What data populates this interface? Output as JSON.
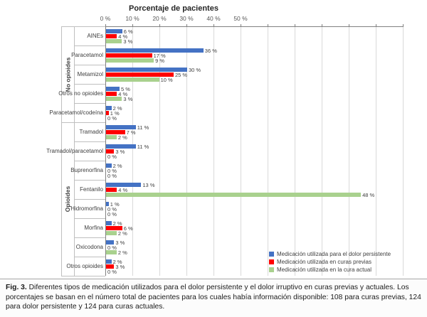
{
  "chart_data": {
    "type": "bar",
    "orientation": "horizontal",
    "title": "Porcentaje de pacientes",
    "x_ticks": [
      "0 %",
      "10 %",
      "20 %",
      "30 %",
      "40 %",
      "50 %"
    ],
    "x_axis_range": [
      0,
      50
    ],
    "unit": "%",
    "grid": true,
    "legend_position": "bottom-right",
    "categories": [
      "AINEs",
      "Paracetamol",
      "Metamizol",
      "Otros no opioides",
      "Paracetamol/codeína",
      "Tramadol",
      "Tramadol/paracetamol",
      "Buprenorfina",
      "Fentanilo",
      "Hidromorfina",
      "Morfina",
      "Oxicodona",
      "Otros opioides"
    ],
    "groups": [
      {
        "label": "No opioides",
        "start": 0,
        "count": 5
      },
      {
        "label": "Opioides",
        "start": 5,
        "count": 8
      }
    ],
    "series": [
      {
        "name": "Medicación utilizada para el dolor persistente",
        "color": "#4472C4",
        "values": [
          6,
          36,
          30,
          5,
          2,
          11,
          11,
          2,
          13,
          1,
          2,
          3,
          2
        ]
      },
      {
        "name": "Medicación utilizada en curas previas",
        "color": "#FF0000",
        "values": [
          4,
          17,
          25,
          4,
          1,
          7,
          3,
          0,
          4,
          0,
          6,
          0,
          3
        ]
      },
      {
        "name": "Medicación utilizada en la cura actual",
        "color": "#A9D18E",
        "values": [
          3,
          9,
          10,
          3,
          0,
          2,
          0,
          0,
          48,
          0,
          2,
          2,
          0
        ]
      }
    ]
  },
  "caption": {
    "label": "Fig. 3.",
    "text": "Diferentes tipos de medicación utilizados para el dolor persistente y el dolor irruptivo en curas previas y actuales. Los porcentajes se basan en el número total de pacientes para los cuales había información disponible: 108 para curas previas, 124 para dolor persistente y 124 para curas actuales."
  }
}
